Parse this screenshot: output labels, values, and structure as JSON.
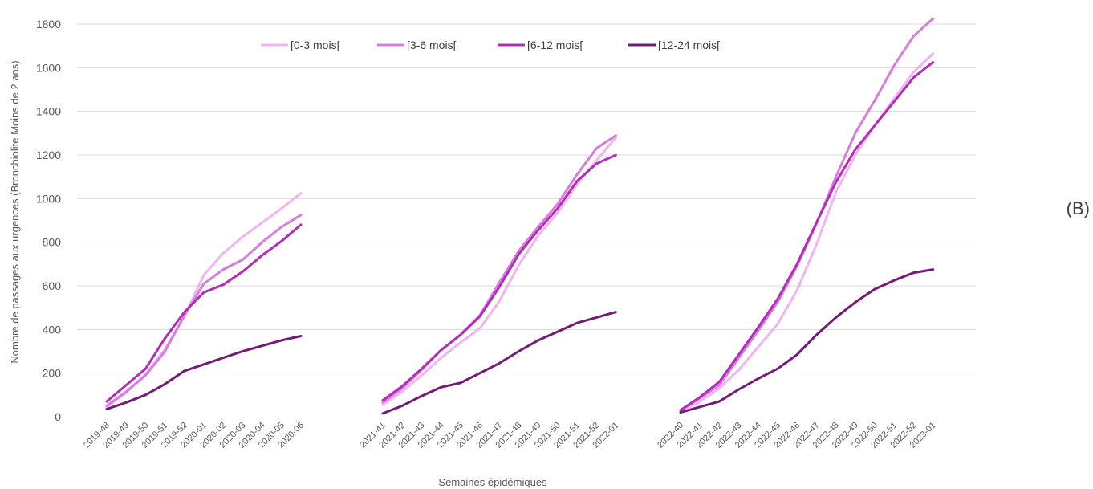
{
  "panel_label": "(B)",
  "chart_data": {
    "type": "line",
    "ylabel": "Nombre de passages aux urgences (Bronchiolite Moins de 2 ans)",
    "xlabel": "Semaines épidémiques",
    "ylim": [
      0,
      1800
    ],
    "yticks": [
      0,
      200,
      400,
      600,
      800,
      1000,
      1200,
      1400,
      1600,
      1800
    ],
    "grid": "horizontal",
    "legend_position": "top",
    "series_meta": [
      {
        "name": "[0-3 mois[",
        "color": "#F0B4F0"
      },
      {
        "name": "[3-6 mois[",
        "color": "#D97BDF"
      },
      {
        "name": "[6-12 mois[",
        "color": "#B32DB8"
      },
      {
        "name": "[12-24 mois[",
        "color": "#741B78"
      }
    ],
    "groups": [
      {
        "categories": [
          "2019-48",
          "2019-49",
          "2019-50",
          "2019-51",
          "2019-52",
          "2020-01",
          "2020-02",
          "2020-03",
          "2020-04",
          "2020-05",
          "2020-06"
        ],
        "series": [
          {
            "name": "[0-3 mois[",
            "values": [
              45,
              110,
              195,
              310,
              460,
              650,
              750,
              825,
              890,
              955,
              1025
            ]
          },
          {
            "name": "[3-6 mois[",
            "values": [
              50,
              115,
              190,
              300,
              465,
              610,
              675,
              720,
              800,
              870,
              925
            ]
          },
          {
            "name": "[6-12 mois[",
            "values": [
              70,
              145,
              220,
              360,
              480,
              570,
              605,
              665,
              740,
              805,
              880
            ]
          },
          {
            "name": "[12-24 mois[",
            "values": [
              35,
              65,
              100,
              150,
              210,
              240,
              270,
              300,
              325,
              350,
              370
            ]
          }
        ]
      },
      {
        "categories": [
          "2021-41",
          "2021-42",
          "2021-43",
          "2021-44",
          "2021-45",
          "2021-46",
          "2021-47",
          "2021-48",
          "2021-49",
          "2021-50",
          "2021-51",
          "2021-52",
          "2022-01"
        ],
        "series": [
          {
            "name": "[0-3 mois[",
            "values": [
              55,
              115,
              190,
              270,
              340,
              405,
              530,
              695,
              830,
              935,
              1065,
              1175,
              1280
            ]
          },
          {
            "name": "[3-6 mois[",
            "values": [
              65,
              130,
              215,
              305,
              375,
              465,
              615,
              760,
              870,
              975,
              1110,
              1230,
              1290
            ]
          },
          {
            "name": "[6-12 mois[",
            "values": [
              75,
              140,
              220,
              305,
              375,
              460,
              595,
              745,
              855,
              955,
              1080,
              1160,
              1200
            ]
          },
          {
            "name": "[12-24 mois[",
            "values": [
              15,
              50,
              95,
              135,
              155,
              200,
              245,
              300,
              350,
              390,
              430,
              455,
              480
            ]
          }
        ]
      },
      {
        "categories": [
          "2022-40",
          "2022-41",
          "2022-42",
          "2022-43",
          "2022-44",
          "2022-45",
          "2022-46",
          "2022-47",
          "2022-48",
          "2022-49",
          "2022-50",
          "2022-51",
          "2022-52",
          "2023-01"
        ],
        "series": [
          {
            "name": "[0-3 mois[",
            "values": [
              25,
              70,
              130,
              215,
              320,
              425,
              580,
              790,
              1030,
              1200,
              1335,
              1460,
              1580,
              1665
            ]
          },
          {
            "name": "[3-6 mois[",
            "values": [
              30,
              85,
              145,
              270,
              395,
              525,
              690,
              885,
              1100,
              1300,
              1450,
              1610,
              1745,
              1825
            ]
          },
          {
            "name": "[6-12 mois[",
            "values": [
              30,
              90,
              160,
              285,
              410,
              540,
              700,
              890,
              1075,
              1225,
              1335,
              1445,
              1555,
              1625
            ]
          },
          {
            "name": "[12-24 mois[",
            "values": [
              20,
              45,
              70,
              125,
              175,
              220,
              285,
              375,
              455,
              525,
              585,
              625,
              660,
              675
            ]
          }
        ]
      }
    ]
  }
}
